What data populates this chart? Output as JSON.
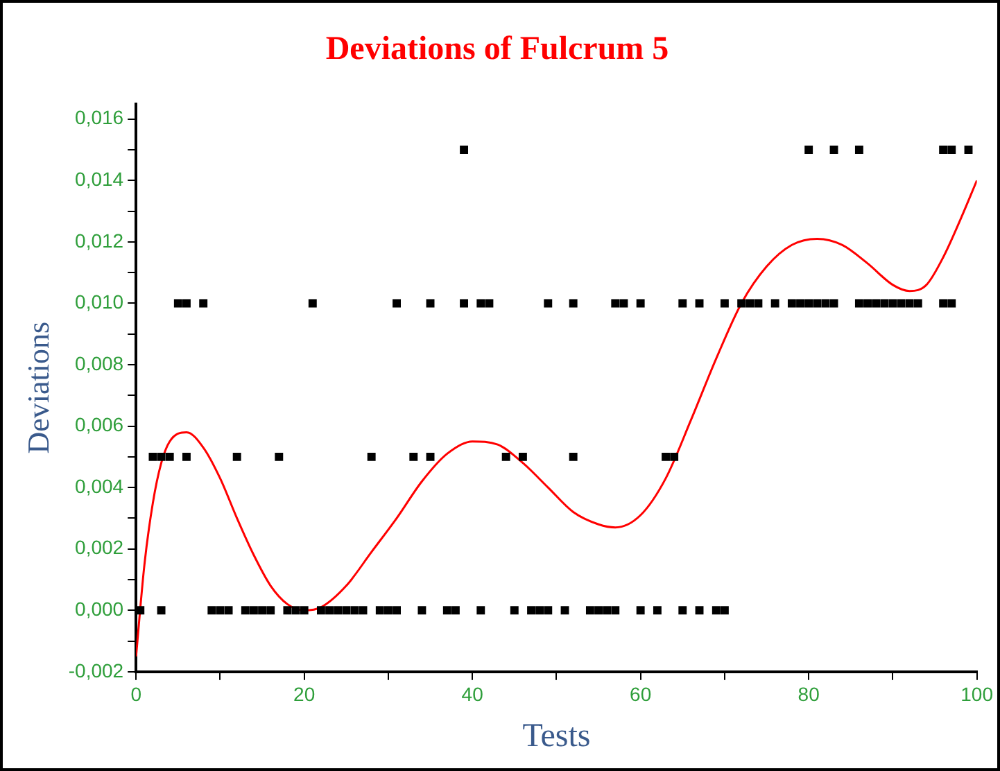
{
  "chart_data": {
    "type": "scatter",
    "title": "Deviations of Fulcrum 5",
    "xlabel": "Tests",
    "ylabel": "Deviations",
    "xlim": [
      0,
      100
    ],
    "xticks": [
      0,
      {
        "value": 10,
        "label": null
      },
      20,
      {
        "value": 30,
        "label": null
      },
      40,
      {
        "value": 50,
        "label": null
      },
      60,
      {
        "value": 70,
        "label": null
      },
      80,
      {
        "value": 90,
        "label": null
      },
      100
    ],
    "ylim": [
      -0.002,
      0.0165
    ],
    "yticks": [
      {
        "value": -0.002,
        "label": "-0,002"
      },
      {
        "value": -0.001,
        "label": null
      },
      {
        "value": 0,
        "label": "0,000"
      },
      {
        "value": 0.001,
        "label": null
      },
      {
        "value": 0.002,
        "label": "0,002"
      },
      {
        "value": 0.003,
        "label": null
      },
      {
        "value": 0.004,
        "label": "0,004"
      },
      {
        "value": 0.005,
        "label": null
      },
      {
        "value": 0.006,
        "label": "0,006"
      },
      {
        "value": 0.007,
        "label": null
      },
      {
        "value": 0.008,
        "label": "0,008"
      },
      {
        "value": 0.009,
        "label": null
      },
      {
        "value": 0.01,
        "label": "0,010"
      },
      {
        "value": 0.011,
        "label": null
      },
      {
        "value": 0.012,
        "label": "0,012"
      },
      {
        "value": 0.013,
        "label": null
      },
      {
        "value": 0.014,
        "label": "0,014"
      },
      {
        "value": 0.015,
        "label": null
      },
      {
        "value": 0.016,
        "label": "0,016"
      }
    ],
    "grid": false,
    "legend": false,
    "marker": "square",
    "series": [
      {
        "type": "scatter",
        "color": "#000000",
        "x": [
          39,
          80,
          83,
          86,
          96,
          97,
          99,
          5,
          6,
          8,
          21,
          31,
          35,
          39,
          41,
          42,
          49,
          52,
          57,
          58,
          60,
          65,
          67,
          70,
          72,
          73,
          74,
          76,
          78,
          79,
          80,
          81,
          82,
          83,
          86,
          87,
          88,
          89,
          90,
          91,
          92,
          93,
          96,
          97,
          2,
          3,
          4,
          6,
          12,
          17,
          28,
          33,
          35,
          44,
          46,
          52,
          63,
          64,
          0.5,
          3,
          9,
          10,
          11,
          13,
          14,
          15,
          16,
          18,
          19,
          20,
          22,
          23,
          24,
          25,
          26,
          27,
          29,
          30,
          31,
          34,
          37,
          38,
          41,
          45,
          47,
          48,
          49,
          51,
          54,
          55,
          56,
          57,
          60,
          62,
          65,
          67,
          69,
          70
        ],
        "values": [
          0.015,
          0.015,
          0.015,
          0.015,
          0.015,
          0.015,
          0.015,
          0.01,
          0.01,
          0.01,
          0.01,
          0.01,
          0.01,
          0.01,
          0.01,
          0.01,
          0.01,
          0.01,
          0.01,
          0.01,
          0.01,
          0.01,
          0.01,
          0.01,
          0.01,
          0.01,
          0.01,
          0.01,
          0.01,
          0.01,
          0.01,
          0.01,
          0.01,
          0.01,
          0.01,
          0.01,
          0.01,
          0.01,
          0.01,
          0.01,
          0.01,
          0.01,
          0.01,
          0.01,
          0.005,
          0.005,
          0.005,
          0.005,
          0.005,
          0.005,
          0.005,
          0.005,
          0.005,
          0.005,
          0.005,
          0.005,
          0.005,
          0.005,
          0,
          0,
          0,
          0,
          0,
          0,
          0,
          0,
          0,
          0,
          0,
          0,
          0,
          0,
          0,
          0,
          0,
          0,
          0,
          0,
          0,
          0,
          0,
          0,
          0,
          0,
          0,
          0,
          0,
          0,
          0,
          0,
          0,
          0,
          0,
          0,
          0,
          0,
          0,
          0
        ]
      },
      {
        "type": "line",
        "color": "#ff0000",
        "marker": "none",
        "x": [
          0,
          1,
          2,
          3,
          4,
          6,
          8,
          10,
          12,
          14,
          16,
          18,
          20,
          22,
          25,
          28,
          31,
          34,
          37,
          40,
          43,
          46,
          49,
          52,
          55,
          57,
          60,
          63,
          66,
          69,
          72,
          75,
          78,
          81,
          84,
          87,
          90,
          92,
          94,
          96,
          98,
          100
        ],
        "values": [
          -0.0015,
          0.0015,
          0.0035,
          0.0048,
          0.0055,
          0.0058,
          0.0053,
          0.0043,
          0.003,
          0.0018,
          0.0008,
          0.0002,
          0,
          0.0001,
          0.0008,
          0.0019,
          0.003,
          0.0042,
          0.0051,
          0.0055,
          0.0054,
          0.0048,
          0.004,
          0.0032,
          0.0028,
          0.0027,
          0.0031,
          0.0043,
          0.0062,
          0.0082,
          0.01,
          0.0112,
          0.0119,
          0.0121,
          0.0119,
          0.0113,
          0.0106,
          0.0104,
          0.0106,
          0.0115,
          0.0127,
          0.014
        ]
      }
    ]
  }
}
